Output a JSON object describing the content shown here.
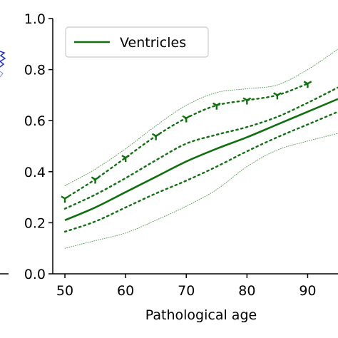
{
  "chart_data": {
    "type": "line",
    "xlabel": "Pathological age",
    "ylabel": "",
    "xlim": [
      48,
      95
    ],
    "ylim": [
      0.0,
      1.0
    ],
    "xticks": [
      50,
      60,
      70,
      80,
      90
    ],
    "xtick_labels": [
      "50",
      "60",
      "70",
      "80",
      "90"
    ],
    "yticks": [
      0.0,
      0.2,
      0.4,
      0.6,
      0.8,
      1.0
    ],
    "ytick_labels": [
      "0.0",
      "0.2",
      "0.4",
      "0.6",
      "0.8",
      "1.0"
    ],
    "legend": {
      "position": "top-left",
      "entries": [
        "Ventricles"
      ]
    },
    "grid": false,
    "color": "#107010",
    "curves": [
      {
        "role": "mean",
        "style": "solid",
        "x": [
          50,
          55,
          60,
          65,
          70,
          75,
          80,
          85,
          90,
          95
        ],
        "y": [
          0.21,
          0.26,
          0.32,
          0.38,
          0.44,
          0.49,
          0.535,
          0.585,
          0.635,
          0.685
        ]
      },
      {
        "role": "upper-inner",
        "style": "dotted",
        "x": [
          50,
          55,
          60,
          65,
          70,
          75,
          80,
          85,
          90,
          95
        ],
        "y": [
          0.255,
          0.31,
          0.375,
          0.445,
          0.51,
          0.545,
          0.575,
          0.615,
          0.67,
          0.73
        ]
      },
      {
        "role": "lower-inner",
        "style": "dotted",
        "x": [
          50,
          55,
          60,
          65,
          70,
          75,
          80,
          85,
          90,
          95
        ],
        "y": [
          0.165,
          0.205,
          0.26,
          0.315,
          0.365,
          0.42,
          0.48,
          0.535,
          0.585,
          0.635
        ]
      },
      {
        "role": "upper-outer",
        "style": "fine-dotted",
        "x": [
          50,
          55,
          60,
          65,
          70,
          75,
          80,
          85,
          90,
          95
        ],
        "y": [
          0.345,
          0.41,
          0.49,
          0.58,
          0.66,
          0.71,
          0.725,
          0.74,
          0.8,
          0.88
        ]
      },
      {
        "role": "lower-outer",
        "style": "fine-dotted",
        "x": [
          50,
          55,
          60,
          65,
          70,
          75,
          80,
          85,
          90,
          95
        ],
        "y": [
          0.1,
          0.13,
          0.16,
          0.21,
          0.265,
          0.33,
          0.42,
          0.485,
          0.52,
          0.55
        ]
      },
      {
        "role": "markers-connector",
        "style": "dotted",
        "x": [
          50,
          55,
          60,
          65,
          70,
          75,
          80,
          85,
          90
        ],
        "y": [
          0.295,
          0.37,
          0.455,
          0.54,
          0.61,
          0.66,
          0.68,
          0.7,
          0.745
        ]
      }
    ],
    "markers": {
      "shape": "tri-down",
      "x": [
        50,
        55,
        60,
        65,
        70,
        75,
        80,
        85,
        90
      ],
      "y": [
        0.295,
        0.37,
        0.455,
        0.54,
        0.61,
        0.66,
        0.68,
        0.7,
        0.745
      ]
    }
  }
}
